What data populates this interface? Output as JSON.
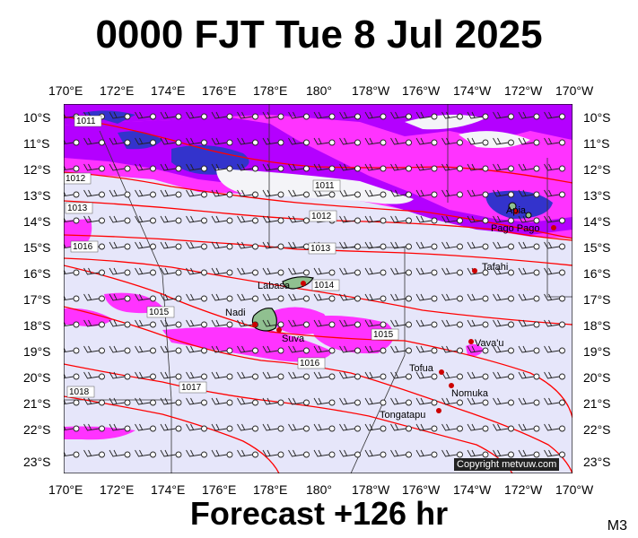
{
  "header": {
    "title": "0000 FJT Tue 8 Jul 2025"
  },
  "footer": {
    "forecast": "Forecast +126 hr",
    "code": "M3",
    "copyright": "Copyright metvuw.com"
  },
  "axes": {
    "lon_labels": [
      "170°E",
      "172°E",
      "174°E",
      "176°E",
      "178°E",
      "180°",
      "178°W",
      "176°W",
      "174°W",
      "172°W",
      "170°W"
    ],
    "lat_labels": [
      "10°S",
      "11°S",
      "12°S",
      "13°S",
      "14°S",
      "15°S",
      "16°S",
      "17°S",
      "18°S",
      "19°S",
      "20°S",
      "21°S",
      "22°S",
      "23°S"
    ]
  },
  "colors": {
    "background": "#e6e6fa",
    "rain_light": "#ff33ff",
    "rain_mid": "#b400ff",
    "rain_heavy": "#3333cc",
    "cloud": "#f4f4f8",
    "isobar": "#ff0000",
    "land": "#90c090",
    "place_dot": "#cc0000"
  },
  "map": {
    "isobar_labels": [
      "1011",
      "1011",
      "1012",
      "1012",
      "1013",
      "1013",
      "1014",
      "1015",
      "1015",
      "1016",
      "1017",
      "1018",
      "1016"
    ],
    "places": [
      {
        "name": "Apia"
      },
      {
        "name": "Pago Pago"
      },
      {
        "name": "Tafahi"
      },
      {
        "name": "Labasa"
      },
      {
        "name": "Nadi"
      },
      {
        "name": "Suva"
      },
      {
        "name": "Vava'u"
      },
      {
        "name": "Tofua"
      },
      {
        "name": "Nomuka"
      },
      {
        "name": "Tongatapu"
      }
    ]
  }
}
